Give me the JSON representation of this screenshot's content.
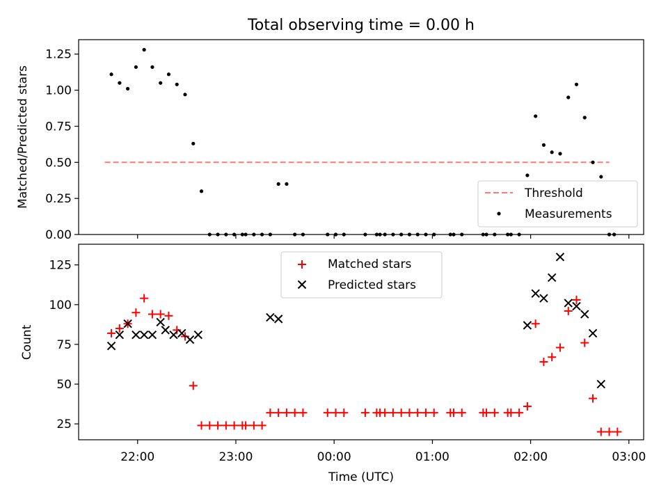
{
  "chart_data": [
    {
      "type": "scatter",
      "title": "Total observing time = 0.00 h",
      "xlabel": "",
      "ylabel": "Matched/Predicted stars",
      "ylim": [
        0.0,
        1.35
      ],
      "y_ticks": [
        {
          "value": 0.0,
          "label": "0.00"
        },
        {
          "value": 0.25,
          "label": "0.25"
        },
        {
          "value": 0.5,
          "label": "0.50"
        },
        {
          "value": 0.75,
          "label": "0.75"
        },
        {
          "value": 1.0,
          "label": "1.00"
        },
        {
          "value": 1.25,
          "label": "1.25"
        }
      ],
      "legend_position": "lower-right",
      "threshold": {
        "name": "Threshold",
        "value": 0.5,
        "x_range": [
          "21:40",
          "02:48"
        ],
        "color": "#ff7777",
        "style": "dashed"
      },
      "series": [
        {
          "name": "Measurements",
          "color": "#000000",
          "marker": "dot",
          "points": [
            [
              "21:44",
              1.11
            ],
            [
              "21:49",
              1.05
            ],
            [
              "21:54",
              1.01
            ],
            [
              "21:59",
              1.16
            ],
            [
              "22:04",
              1.28
            ],
            [
              "22:09",
              1.16
            ],
            [
              "22:14",
              1.05
            ],
            [
              "22:19",
              1.11
            ],
            [
              "22:24",
              1.04
            ],
            [
              "22:29",
              0.97
            ],
            [
              "22:34",
              0.63
            ],
            [
              "22:39",
              0.3
            ],
            [
              "22:44",
              0.0
            ],
            [
              "22:49",
              0.0
            ],
            [
              "22:54",
              0.0
            ],
            [
              "22:59",
              0.0
            ],
            [
              "23:04",
              0.0
            ],
            [
              "23:06",
              0.0
            ],
            [
              "23:11",
              0.0
            ],
            [
              "23:16",
              0.0
            ],
            [
              "23:21",
              0.0
            ],
            [
              "23:26",
              0.35
            ],
            [
              "23:31",
              0.35
            ],
            [
              "23:36",
              0.0
            ],
            [
              "23:41",
              0.0
            ],
            [
              "23:56",
              0.0
            ],
            [
              "00:01",
              0.0
            ],
            [
              "00:06",
              0.0
            ],
            [
              "00:19",
              0.0
            ],
            [
              "00:26",
              0.0
            ],
            [
              "00:28",
              0.0
            ],
            [
              "00:31",
              0.0
            ],
            [
              "00:36",
              0.0
            ],
            [
              "00:41",
              0.0
            ],
            [
              "00:46",
              0.0
            ],
            [
              "00:51",
              0.0
            ],
            [
              "00:56",
              0.0
            ],
            [
              "01:01",
              0.0
            ],
            [
              "01:11",
              0.0
            ],
            [
              "01:13",
              0.0
            ],
            [
              "01:18",
              0.0
            ],
            [
              "01:31",
              0.0
            ],
            [
              "01:33",
              0.0
            ],
            [
              "01:38",
              0.0
            ],
            [
              "01:46",
              0.0
            ],
            [
              "01:48",
              0.0
            ],
            [
              "01:53",
              0.0
            ],
            [
              "01:58",
              0.41
            ],
            [
              "02:03",
              0.82
            ],
            [
              "02:08",
              0.62
            ],
            [
              "02:13",
              0.57
            ],
            [
              "02:18",
              0.56
            ],
            [
              "02:23",
              0.95
            ],
            [
              "02:28",
              1.04
            ],
            [
              "02:33",
              0.81
            ],
            [
              "02:38",
              0.5
            ],
            [
              "02:43",
              0.4
            ],
            [
              "02:48",
              0.0
            ],
            [
              "02:51",
              0.0
            ]
          ]
        }
      ]
    },
    {
      "type": "scatter",
      "title": "",
      "xlabel": "Time (UTC)",
      "ylabel": "Count",
      "ylim": [
        15,
        138
      ],
      "y_ticks": [
        {
          "value": 25,
          "label": "25"
        },
        {
          "value": 50,
          "label": "50"
        },
        {
          "value": 75,
          "label": "75"
        },
        {
          "value": 100,
          "label": "100"
        },
        {
          "value": 125,
          "label": "125"
        }
      ],
      "x_ticks": [
        "22:00",
        "23:00",
        "00:00",
        "01:00",
        "02:00",
        "03:00"
      ],
      "x_range": [
        "21:24",
        "03:09"
      ],
      "legend_position": "upper-center",
      "series": [
        {
          "name": "Matched stars",
          "color": "#ff0000",
          "marker": "plus",
          "points": [
            [
              "21:44",
              82
            ],
            [
              "21:49",
              85
            ],
            [
              "21:54",
              88
            ],
            [
              "21:59",
              95
            ],
            [
              "22:04",
              104
            ],
            [
              "22:09",
              94
            ],
            [
              "22:14",
              94
            ],
            [
              "22:19",
              93
            ],
            [
              "22:24",
              84
            ],
            [
              "22:29",
              80
            ],
            [
              "22:34",
              49
            ],
            [
              "22:39",
              24
            ],
            [
              "22:44",
              24
            ],
            [
              "22:49",
              24
            ],
            [
              "22:54",
              24
            ],
            [
              "22:59",
              24
            ],
            [
              "23:04",
              24
            ],
            [
              "23:06",
              24
            ],
            [
              "23:11",
              24
            ],
            [
              "23:16",
              24
            ],
            [
              "23:21",
              32
            ],
            [
              "23:26",
              32
            ],
            [
              "23:31",
              32
            ],
            [
              "23:36",
              32
            ],
            [
              "23:41",
              32
            ],
            [
              "23:56",
              32
            ],
            [
              "00:01",
              32
            ],
            [
              "00:06",
              32
            ],
            [
              "00:19",
              32
            ],
            [
              "00:26",
              32
            ],
            [
              "00:28",
              32
            ],
            [
              "00:31",
              32
            ],
            [
              "00:36",
              32
            ],
            [
              "00:41",
              32
            ],
            [
              "00:46",
              32
            ],
            [
              "00:51",
              32
            ],
            [
              "00:56",
              32
            ],
            [
              "01:01",
              32
            ],
            [
              "01:11",
              32
            ],
            [
              "01:13",
              32
            ],
            [
              "01:18",
              32
            ],
            [
              "01:31",
              32
            ],
            [
              "01:33",
              32
            ],
            [
              "01:38",
              32
            ],
            [
              "01:46",
              32
            ],
            [
              "01:48",
              32
            ],
            [
              "01:53",
              32
            ],
            [
              "01:58",
              36
            ],
            [
              "02:03",
              88
            ],
            [
              "02:08",
              64
            ],
            [
              "02:13",
              67
            ],
            [
              "02:18",
              73
            ],
            [
              "02:23",
              96
            ],
            [
              "02:28",
              103
            ],
            [
              "02:33",
              76
            ],
            [
              "02:38",
              41
            ],
            [
              "02:43",
              20
            ],
            [
              "02:48",
              20
            ],
            [
              "02:53",
              20
            ]
          ]
        },
        {
          "name": "Predicted stars",
          "color": "#000000",
          "marker": "x",
          "points": [
            [
              "21:44",
              74
            ],
            [
              "21:49",
              81
            ],
            [
              "21:54",
              88
            ],
            [
              "21:59",
              81
            ],
            [
              "22:04",
              81
            ],
            [
              "22:09",
              81
            ],
            [
              "22:14",
              89
            ],
            [
              "22:17",
              84
            ],
            [
              "22:22",
              81
            ],
            [
              "22:27",
              82
            ],
            [
              "22:32",
              78
            ],
            [
              "22:37",
              81
            ],
            [
              "23:21",
              92
            ],
            [
              "23:26",
              91
            ],
            [
              "01:58",
              87
            ],
            [
              "02:03",
              107
            ],
            [
              "02:08",
              104
            ],
            [
              "02:13",
              117
            ],
            [
              "02:18",
              130
            ],
            [
              "02:23",
              101
            ],
            [
              "02:28",
              99
            ],
            [
              "02:33",
              94
            ],
            [
              "02:38",
              82
            ],
            [
              "02:43",
              50
            ]
          ]
        }
      ]
    }
  ]
}
